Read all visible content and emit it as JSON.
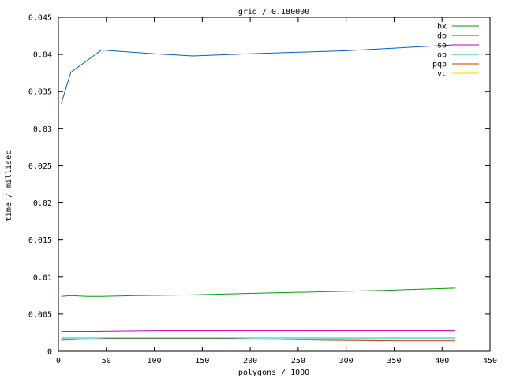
{
  "chart_data": {
    "type": "line",
    "title": "grid / 0.180000",
    "xlabel": "polygons / 1000",
    "ylabel": "time / millisec",
    "xlim": [
      0,
      450
    ],
    "ylim": [
      0,
      0.045
    ],
    "xticks": [
      0,
      50,
      100,
      150,
      200,
      250,
      300,
      350,
      400,
      450
    ],
    "yticks": [
      0,
      0.005,
      0.01,
      0.015,
      0.02,
      0.025,
      0.03,
      0.035,
      0.04,
      0.045
    ],
    "xtick_labels": [
      "0",
      "50",
      "100",
      "150",
      "200",
      "250",
      "300",
      "350",
      "400",
      "450"
    ],
    "ytick_labels": [
      "0",
      "0.005",
      "0.01",
      "0.015",
      "0.02",
      "0.025",
      "0.03",
      "0.035",
      "0.04",
      "0.045"
    ],
    "grid": false,
    "legend_position": "top-right",
    "series": [
      {
        "name": "bx",
        "color": "#00a000",
        "x": [
          3,
          13,
          30,
          45,
          80,
          140,
          200,
          270,
          340,
          414
        ],
        "y": [
          0.0074,
          0.0075,
          0.0074,
          0.0074,
          0.0075,
          0.0076,
          0.0078,
          0.008,
          0.0082,
          0.0085
        ]
      },
      {
        "name": "do",
        "color": "#0060c0",
        "x": [
          3,
          13,
          45,
          100,
          140,
          200,
          300,
          414
        ],
        "y": [
          0.0334,
          0.0376,
          0.0406,
          0.0401,
          0.0398,
          0.0401,
          0.0405,
          0.0413
        ]
      },
      {
        "name": "so",
        "color": "#c000c0",
        "x": [
          3,
          30,
          100,
          200,
          300,
          414
        ],
        "y": [
          0.0027,
          0.0027,
          0.0028,
          0.0028,
          0.0028,
          0.0028
        ]
      },
      {
        "name": "op",
        "color": "#00c0c0",
        "x": [
          3,
          100,
          200,
          300,
          414
        ],
        "y": [
          0.0018,
          0.0018,
          0.0018,
          0.0018,
          0.0018
        ]
      },
      {
        "name": "pqp",
        "color": "#c04000",
        "x": [
          3,
          50,
          180,
          276,
          365,
          414
        ],
        "y": [
          0.0015,
          0.0017,
          0.0017,
          0.0015,
          0.0014,
          0.0014
        ]
      },
      {
        "name": "vc",
        "color": "#e0e000",
        "x": [
          3,
          50,
          180,
          276,
          414
        ],
        "y": [
          0.0016,
          0.0016,
          0.0016,
          0.0016,
          0.0016
        ]
      }
    ]
  }
}
